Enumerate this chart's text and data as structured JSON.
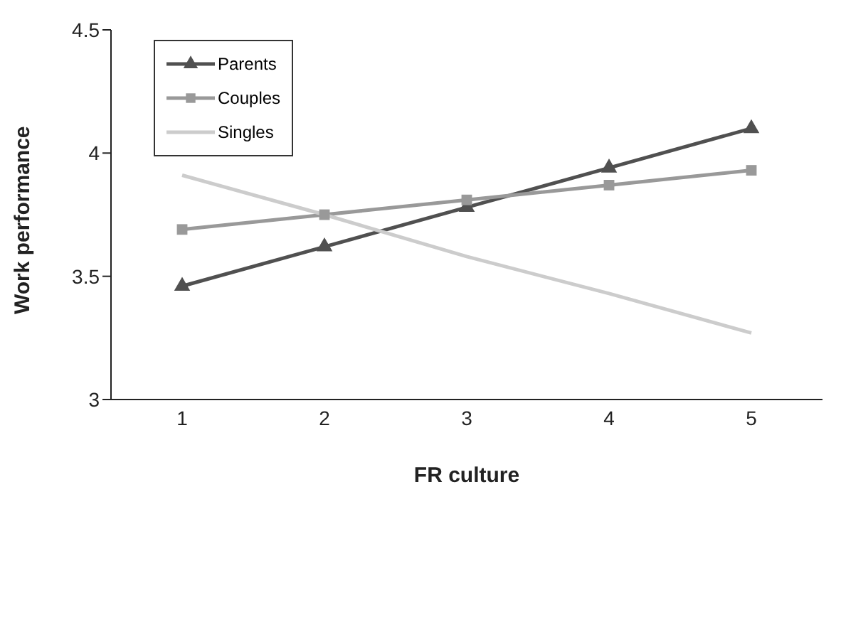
{
  "chart_data": {
    "type": "line",
    "xlabel": "FR culture",
    "ylabel": "Work performance",
    "categories": [
      "1",
      "2",
      "3",
      "4",
      "5"
    ],
    "series": [
      {
        "name": "Parents",
        "color": "#505050",
        "marker": "triangle",
        "values": [
          3.46,
          3.62,
          3.78,
          3.94,
          4.1
        ]
      },
      {
        "name": "Couples",
        "color": "#999999",
        "marker": "square",
        "values": [
          3.69,
          3.75,
          3.81,
          3.87,
          3.93
        ]
      },
      {
        "name": "Singles",
        "color": "#cccccc",
        "marker": "none",
        "values": [
          3.91,
          3.75,
          3.58,
          3.43,
          3.27
        ]
      }
    ],
    "ylim": [
      3,
      4.5
    ],
    "yticks": [
      3,
      3.5,
      4,
      4.5
    ],
    "grid": false,
    "legend": "top left"
  }
}
